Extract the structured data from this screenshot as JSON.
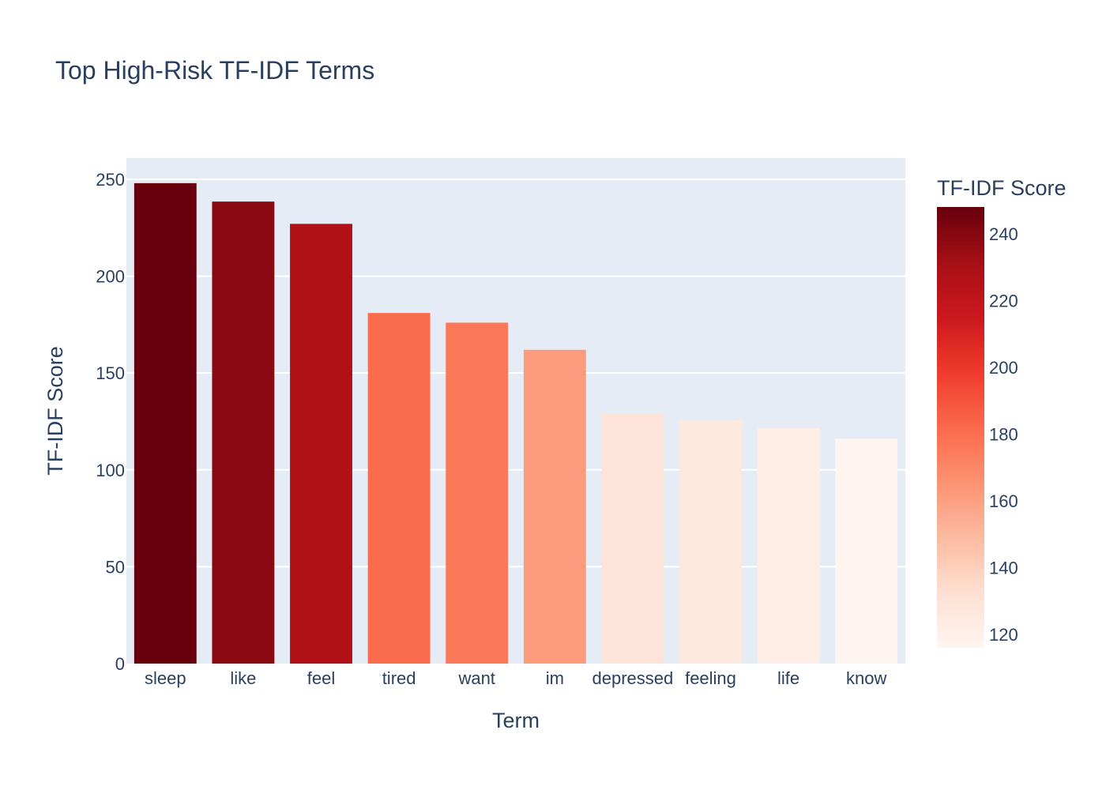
{
  "chart_data": {
    "type": "bar",
    "title": "Top High-Risk TF-IDF Terms",
    "xlabel": "Term",
    "ylabel": "TF-IDF Score",
    "categories": [
      "sleep",
      "like",
      "feel",
      "tired",
      "want",
      "im",
      "depressed",
      "feeling",
      "life",
      "know"
    ],
    "values": [
      248,
      238.5,
      227,
      181,
      176,
      162,
      129,
      125.5,
      121.5,
      116
    ],
    "ylim": [
      0,
      261
    ],
    "yticks": [
      0,
      50,
      100,
      150,
      200,
      250
    ],
    "grid": true,
    "colorscale": "Reds",
    "colorbar": {
      "title": "TF-IDF Score",
      "range": [
        116,
        248
      ],
      "ticks": [
        120,
        140,
        160,
        180,
        200,
        220,
        240
      ]
    },
    "colors": {
      "plot_bg": "#e5ecf6",
      "grid": "#ffffff",
      "text": "#2a3f5f"
    }
  }
}
